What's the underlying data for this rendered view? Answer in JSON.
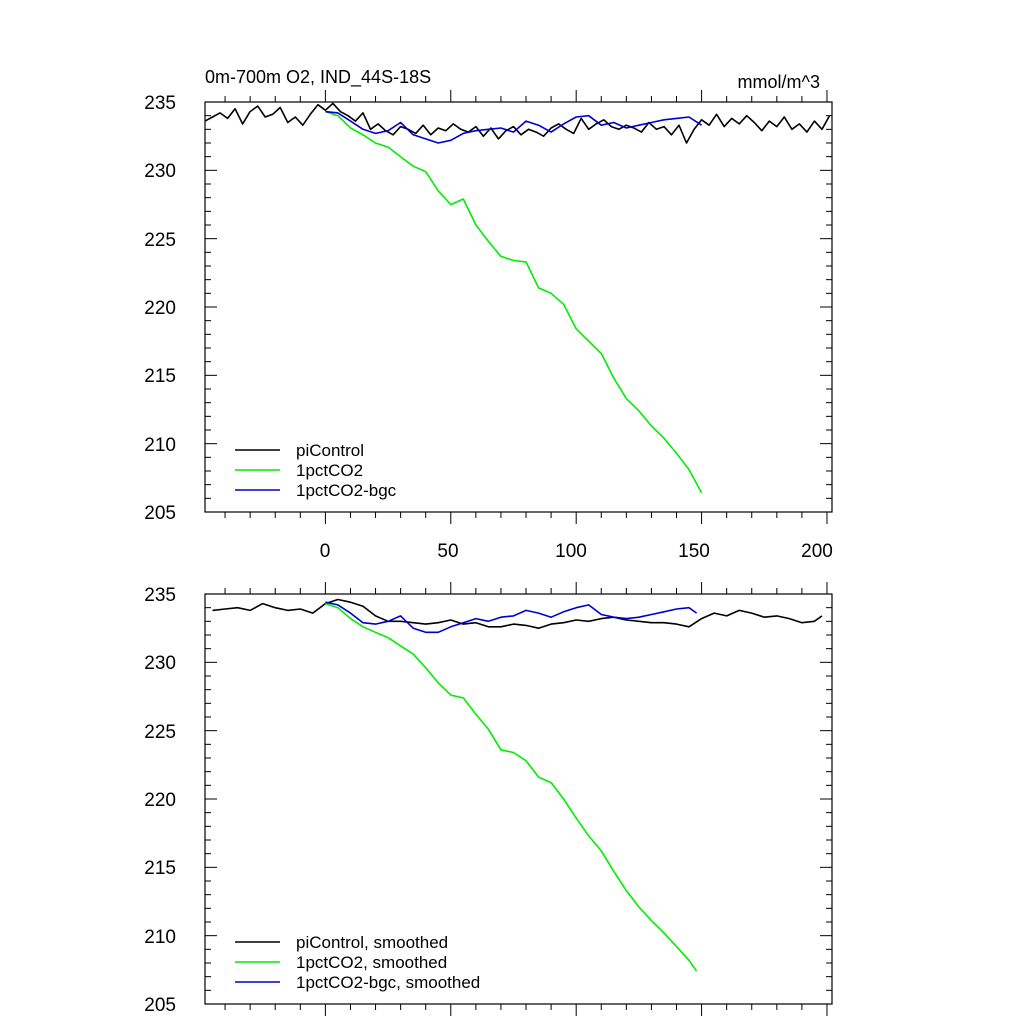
{
  "chart_data": [
    {
      "type": "line",
      "title": "0m-700m O2, IND_44S-18S",
      "units": "mmol/m^3",
      "xlim": [
        -48,
        202
      ],
      "ylim": [
        205,
        235
      ],
      "xticks": [
        0,
        50,
        100,
        150,
        200
      ],
      "yticks": [
        205,
        210,
        215,
        220,
        225,
        230,
        235
      ],
      "xtick_labels": [
        "0",
        "50",
        "100",
        "150",
        "200"
      ],
      "ytick_labels": [
        "205",
        "210",
        "215",
        "220",
        "225",
        "230",
        "235"
      ],
      "legend_position": "bottom-left",
      "series": [
        {
          "name": "piControl",
          "color": "#000000",
          "x": [
            -48,
            -45,
            -42,
            -39,
            -36,
            -33,
            -30,
            -27,
            -24,
            -21,
            -18,
            -15,
            -12,
            -9,
            -6,
            -3,
            0,
            3,
            6,
            9,
            12,
            15,
            18,
            21,
            24,
            27,
            30,
            33,
            36,
            39,
            42,
            45,
            48,
            51,
            54,
            57,
            60,
            63,
            66,
            69,
            72,
            75,
            78,
            81,
            84,
            87,
            90,
            93,
            96,
            99,
            102,
            105,
            108,
            111,
            114,
            117,
            120,
            123,
            126,
            129,
            132,
            135,
            138,
            141,
            144,
            147,
            150,
            153,
            156,
            159,
            162,
            165,
            168,
            171,
            174,
            177,
            180,
            183,
            186,
            189,
            192,
            195,
            198,
            201
          ],
          "y": [
            233.6,
            233.9,
            234.2,
            233.8,
            234.5,
            233.4,
            234.3,
            234.7,
            233.9,
            234.1,
            234.6,
            233.5,
            233.9,
            233.3,
            234.1,
            234.8,
            234.4,
            234.9,
            234.3,
            234.0,
            233.6,
            234.2,
            233.0,
            233.4,
            232.9,
            232.6,
            233.2,
            233.0,
            232.7,
            233.3,
            232.6,
            233.1,
            232.9,
            233.4,
            233.0,
            232.8,
            233.2,
            232.5,
            233.1,
            232.3,
            232.9,
            233.2,
            232.6,
            233.0,
            232.8,
            232.5,
            233.1,
            233.4,
            233.0,
            232.7,
            233.8,
            233.0,
            233.4,
            233.7,
            233.2,
            233.0,
            233.3,
            233.1,
            232.8,
            233.5,
            233.0,
            233.2,
            232.6,
            233.3,
            232.0,
            233.0,
            233.7,
            233.3,
            234.1,
            233.2,
            233.8,
            233.4,
            234.0,
            233.5,
            232.9,
            233.6,
            233.2,
            233.9,
            233.0,
            233.4,
            232.8,
            233.6,
            233.0,
            234.0
          ]
        },
        {
          "name": "1pctCO2",
          "color": "#00ee00",
          "x": [
            0,
            5,
            10,
            15,
            20,
            25,
            30,
            35,
            40,
            45,
            50,
            55,
            60,
            65,
            70,
            75,
            80,
            85,
            90,
            95,
            100,
            105,
            110,
            115,
            120,
            125,
            130,
            135,
            140,
            145,
            150
          ],
          "y": [
            234.3,
            234.0,
            233.1,
            232.6,
            232.0,
            231.7,
            231.0,
            230.3,
            229.9,
            228.5,
            227.5,
            227.9,
            226.0,
            224.8,
            223.7,
            223.4,
            223.3,
            221.4,
            221.0,
            220.2,
            218.4,
            217.5,
            216.6,
            214.8,
            213.3,
            212.4,
            211.3,
            210.4,
            209.3,
            208.1,
            206.4
          ]
        },
        {
          "name": "1pctCO2-bgc",
          "color": "#0000cc",
          "x": [
            0,
            5,
            10,
            15,
            20,
            25,
            30,
            35,
            40,
            45,
            50,
            55,
            60,
            65,
            70,
            75,
            80,
            85,
            90,
            95,
            100,
            105,
            110,
            115,
            120,
            125,
            130,
            135,
            140,
            145,
            150
          ],
          "y": [
            234.3,
            234.2,
            233.6,
            233.0,
            232.7,
            232.9,
            233.5,
            232.6,
            232.3,
            232.0,
            232.2,
            232.7,
            232.9,
            233.0,
            233.1,
            232.8,
            233.6,
            233.3,
            232.8,
            233.4,
            233.9,
            234.0,
            233.3,
            233.5,
            233.1,
            233.3,
            233.5,
            233.7,
            233.8,
            233.9,
            233.3
          ]
        }
      ]
    },
    {
      "type": "line",
      "xlim": [
        -48,
        202
      ],
      "ylim": [
        205,
        235
      ],
      "xticks": [
        0,
        50,
        100,
        150,
        200
      ],
      "yticks": [
        205,
        210,
        215,
        220,
        225,
        230,
        235
      ],
      "ytick_labels": [
        "205",
        "210",
        "215",
        "220",
        "225",
        "230",
        "235"
      ],
      "legend_position": "bottom-left",
      "series": [
        {
          "name": "piControl, smoothed",
          "color": "#000000",
          "x": [
            -45,
            -40,
            -35,
            -30,
            -25,
            -20,
            -15,
            -10,
            -5,
            0,
            5,
            10,
            15,
            20,
            25,
            30,
            35,
            40,
            45,
            50,
            55,
            60,
            65,
            70,
            75,
            80,
            85,
            90,
            95,
            100,
            105,
            110,
            115,
            120,
            125,
            130,
            135,
            140,
            145,
            150,
            155,
            160,
            165,
            170,
            175,
            180,
            185,
            190,
            195,
            198
          ],
          "y": [
            233.8,
            233.9,
            234.0,
            233.8,
            234.3,
            234.0,
            233.8,
            233.9,
            233.6,
            234.3,
            234.6,
            234.4,
            234.1,
            233.4,
            233.0,
            233.0,
            232.9,
            232.8,
            232.9,
            233.1,
            232.8,
            232.9,
            232.6,
            232.6,
            232.8,
            232.7,
            232.5,
            232.8,
            232.9,
            233.1,
            233.0,
            233.2,
            233.3,
            233.1,
            233.0,
            232.9,
            232.9,
            232.8,
            232.6,
            233.2,
            233.6,
            233.4,
            233.8,
            233.6,
            233.3,
            233.4,
            233.2,
            232.9,
            233.0,
            233.4
          ]
        },
        {
          "name": "1pctCO2, smoothed",
          "color": "#00ee00",
          "x": [
            0,
            5,
            10,
            15,
            20,
            25,
            30,
            35,
            40,
            45,
            50,
            55,
            60,
            65,
            70,
            75,
            80,
            85,
            90,
            95,
            100,
            105,
            110,
            115,
            120,
            125,
            130,
            135,
            140,
            145,
            148
          ],
          "y": [
            234.3,
            234.0,
            233.2,
            232.6,
            232.2,
            231.8,
            231.2,
            230.6,
            229.6,
            228.5,
            227.6,
            227.4,
            226.2,
            225.1,
            223.6,
            223.4,
            222.8,
            221.6,
            221.2,
            220.0,
            218.6,
            217.3,
            216.2,
            214.7,
            213.3,
            212.1,
            211.1,
            210.2,
            209.2,
            208.2,
            207.4
          ]
        },
        {
          "name": "1pctCO2-bgc, smoothed",
          "color": "#0000cc",
          "x": [
            0,
            5,
            10,
            15,
            20,
            25,
            30,
            35,
            40,
            45,
            50,
            55,
            60,
            65,
            70,
            75,
            80,
            85,
            90,
            95,
            100,
            105,
            110,
            115,
            120,
            125,
            130,
            135,
            140,
            145,
            148
          ],
          "y": [
            234.4,
            234.2,
            233.6,
            232.9,
            232.8,
            233.0,
            233.4,
            232.5,
            232.2,
            232.2,
            232.6,
            232.9,
            233.2,
            233.0,
            233.3,
            233.4,
            233.8,
            233.6,
            233.3,
            233.7,
            234.0,
            234.2,
            233.5,
            233.3,
            233.2,
            233.3,
            233.5,
            233.7,
            233.9,
            234.0,
            233.6
          ]
        }
      ]
    }
  ]
}
